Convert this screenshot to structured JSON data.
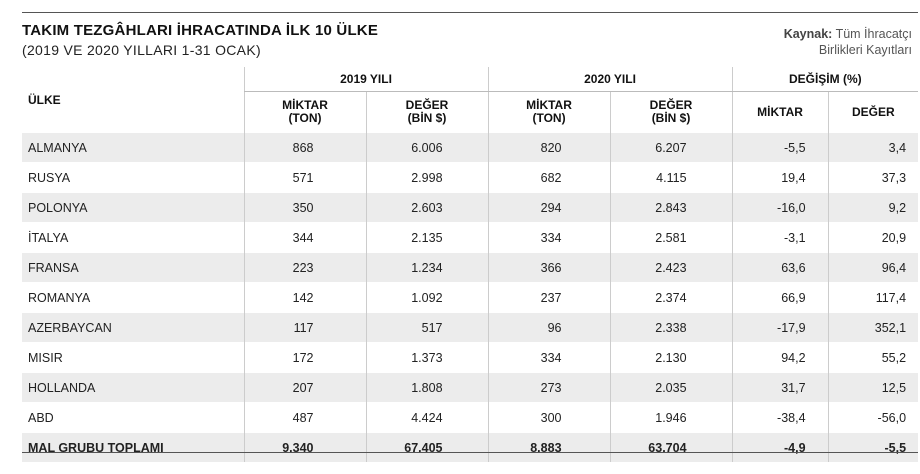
{
  "header": {
    "title": "TAKIM TEZGÂHLARI İHRACATINDA İLK 10 ÜLKE",
    "subtitle": "(2019 VE 2020 YILLARI 1-31 OCAK)",
    "source_label": "Kaynak:",
    "source_line1": "Tüm İhracatçı",
    "source_line2": "Birlikleri Kayıtları"
  },
  "table": {
    "col_country": "ÜLKE",
    "group_2019": "2019 YILI",
    "group_2020": "2020 YILI",
    "group_change": "DEĞİŞİM (%)",
    "sub_miktar_l1": "MİKTAR",
    "sub_miktar_l2": "(TON)",
    "sub_deger_l1": "DEĞER",
    "sub_deger_l2": "(BİN $)",
    "sub_change_miktar": "MİKTAR",
    "sub_change_deger": "DEĞER",
    "rows": [
      {
        "country": "ALMANYA",
        "m2019": "868",
        "d2019": "6.006",
        "m2020": "820",
        "d2020": "6.207",
        "pm": "-5,5",
        "pd": "3,4"
      },
      {
        "country": "RUSYA",
        "m2019": "571",
        "d2019": "2.998",
        "m2020": "682",
        "d2020": "4.115",
        "pm": "19,4",
        "pd": "37,3"
      },
      {
        "country": "POLONYA",
        "m2019": "350",
        "d2019": "2.603",
        "m2020": "294",
        "d2020": "2.843",
        "pm": "-16,0",
        "pd": "9,2"
      },
      {
        "country": "İTALYA",
        "m2019": "344",
        "d2019": "2.135",
        "m2020": "334",
        "d2020": "2.581",
        "pm": "-3,1",
        "pd": "20,9"
      },
      {
        "country": "FRANSA",
        "m2019": "223",
        "d2019": "1.234",
        "m2020": "366",
        "d2020": "2.423",
        "pm": "63,6",
        "pd": "96,4"
      },
      {
        "country": "ROMANYA",
        "m2019": "142",
        "d2019": "1.092",
        "m2020": "237",
        "d2020": "2.374",
        "pm": "66,9",
        "pd": "117,4"
      },
      {
        "country": "AZERBAYCAN",
        "m2019": "117",
        "d2019": "517",
        "m2020": "96",
        "d2020": "2.338",
        "pm": "-17,9",
        "pd": "352,1"
      },
      {
        "country": "MISIR",
        "m2019": "172",
        "d2019": "1.373",
        "m2020": "334",
        "d2020": "2.130",
        "pm": "94,2",
        "pd": "55,2"
      },
      {
        "country": "HOLLANDA",
        "m2019": "207",
        "d2019": "1.808",
        "m2020": "273",
        "d2020": "2.035",
        "pm": "31,7",
        "pd": "12,5"
      },
      {
        "country": "ABD",
        "m2019": "487",
        "d2019": "4.424",
        "m2020": "300",
        "d2020": "1.946",
        "pm": "-38,4",
        "pd": "-56,0"
      }
    ],
    "total": {
      "country": "MAL GRUBU TOPLAMI",
      "m2019": "9.340",
      "d2019": "67.405",
      "m2020": "8.883",
      "d2020": "63.704",
      "pm": "-4,9",
      "pd": "-5,5"
    }
  }
}
